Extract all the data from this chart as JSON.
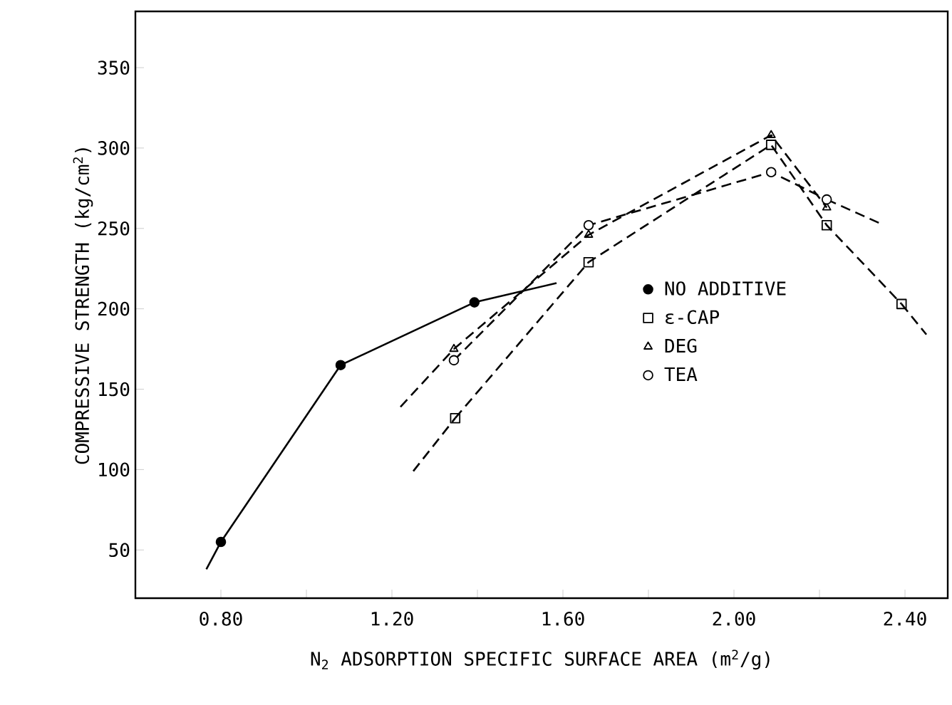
{
  "chart_data": {
    "type": "line",
    "xlabel": "N$_{2}$ ADSORPTION SPECIFIC SURFACE AREA (m$^{2}$/g)",
    "ylabel": "COMPRESSIVE STRENGTH (kg/cm$^{2}$)",
    "xlim": [
      0.6,
      2.5
    ],
    "ylim": [
      20,
      385
    ],
    "xticks": [
      {
        "value": 0.8,
        "label": "0.80"
      },
      {
        "value": 1.0,
        "label": null
      },
      {
        "value": 1.2,
        "label": "1.20"
      },
      {
        "value": 1.4,
        "label": null
      },
      {
        "value": 1.6,
        "label": "1.60"
      },
      {
        "value": 1.8,
        "label": null
      },
      {
        "value": 2.0,
        "label": "2.00"
      },
      {
        "value": 2.2,
        "label": null
      },
      {
        "value": 2.4,
        "label": "2.40"
      }
    ],
    "yticks": [
      50,
      100,
      150,
      200,
      250,
      300,
      350
    ],
    "grid": false,
    "legend": "right",
    "series": [
      {
        "name": "NO ADDITIVE",
        "color": "#000000",
        "marker": "circle",
        "line_style": "solid",
        "x": [
          0.8,
          1.08,
          1.393
        ],
        "values": [
          55,
          165,
          204
        ]
      },
      {
        "name": "ε-CAP",
        "color": "#000000",
        "marker": "square",
        "line_style": "dashed",
        "x": [
          1.348,
          1.66,
          2.087,
          2.217,
          2.392
        ],
        "values": [
          132,
          229,
          302,
          252,
          203
        ]
      },
      {
        "name": "DEG",
        "color": "#000000",
        "marker": "triangle",
        "line_style": "dashed",
        "x": [
          1.345,
          1.66,
          2.087,
          2.217
        ],
        "values": [
          175,
          246,
          308,
          263
        ]
      },
      {
        "name": "TEA",
        "color": "#000000",
        "marker": "circle",
        "line_style": "dashed",
        "x": [
          1.345,
          1.66,
          2.087,
          2.217
        ],
        "values": [
          168,
          252,
          285,
          268
        ]
      },
      {
        "color": "#000000",
        "marker": "none",
        "line_style": "solid",
        "x": [
          0.766,
          0.8
        ],
        "values": [
          38,
          55
        ]
      },
      {
        "color": "#000000",
        "marker": "none",
        "line_style": "solid",
        "x": [
          1.393,
          1.585
        ],
        "values": [
          204,
          216
        ]
      },
      {
        "color": "#000000",
        "marker": "none",
        "line_style": "dashed",
        "x": [
          1.25,
          1.348
        ],
        "values": [
          99,
          132
        ]
      },
      {
        "color": "#000000",
        "marker": "none",
        "line_style": "dashed",
        "x": [
          2.392,
          2.45
        ],
        "values": [
          203,
          184
        ]
      },
      {
        "color": "#000000",
        "marker": "none",
        "line_style": "dashed",
        "x": [
          1.22,
          1.345
        ],
        "values": [
          139,
          175
        ]
      },
      {
        "color": "#000000",
        "marker": "none",
        "line_style": "dashed",
        "x": [
          2.217,
          2.343
        ],
        "values": [
          268,
          253
        ]
      }
    ]
  }
}
